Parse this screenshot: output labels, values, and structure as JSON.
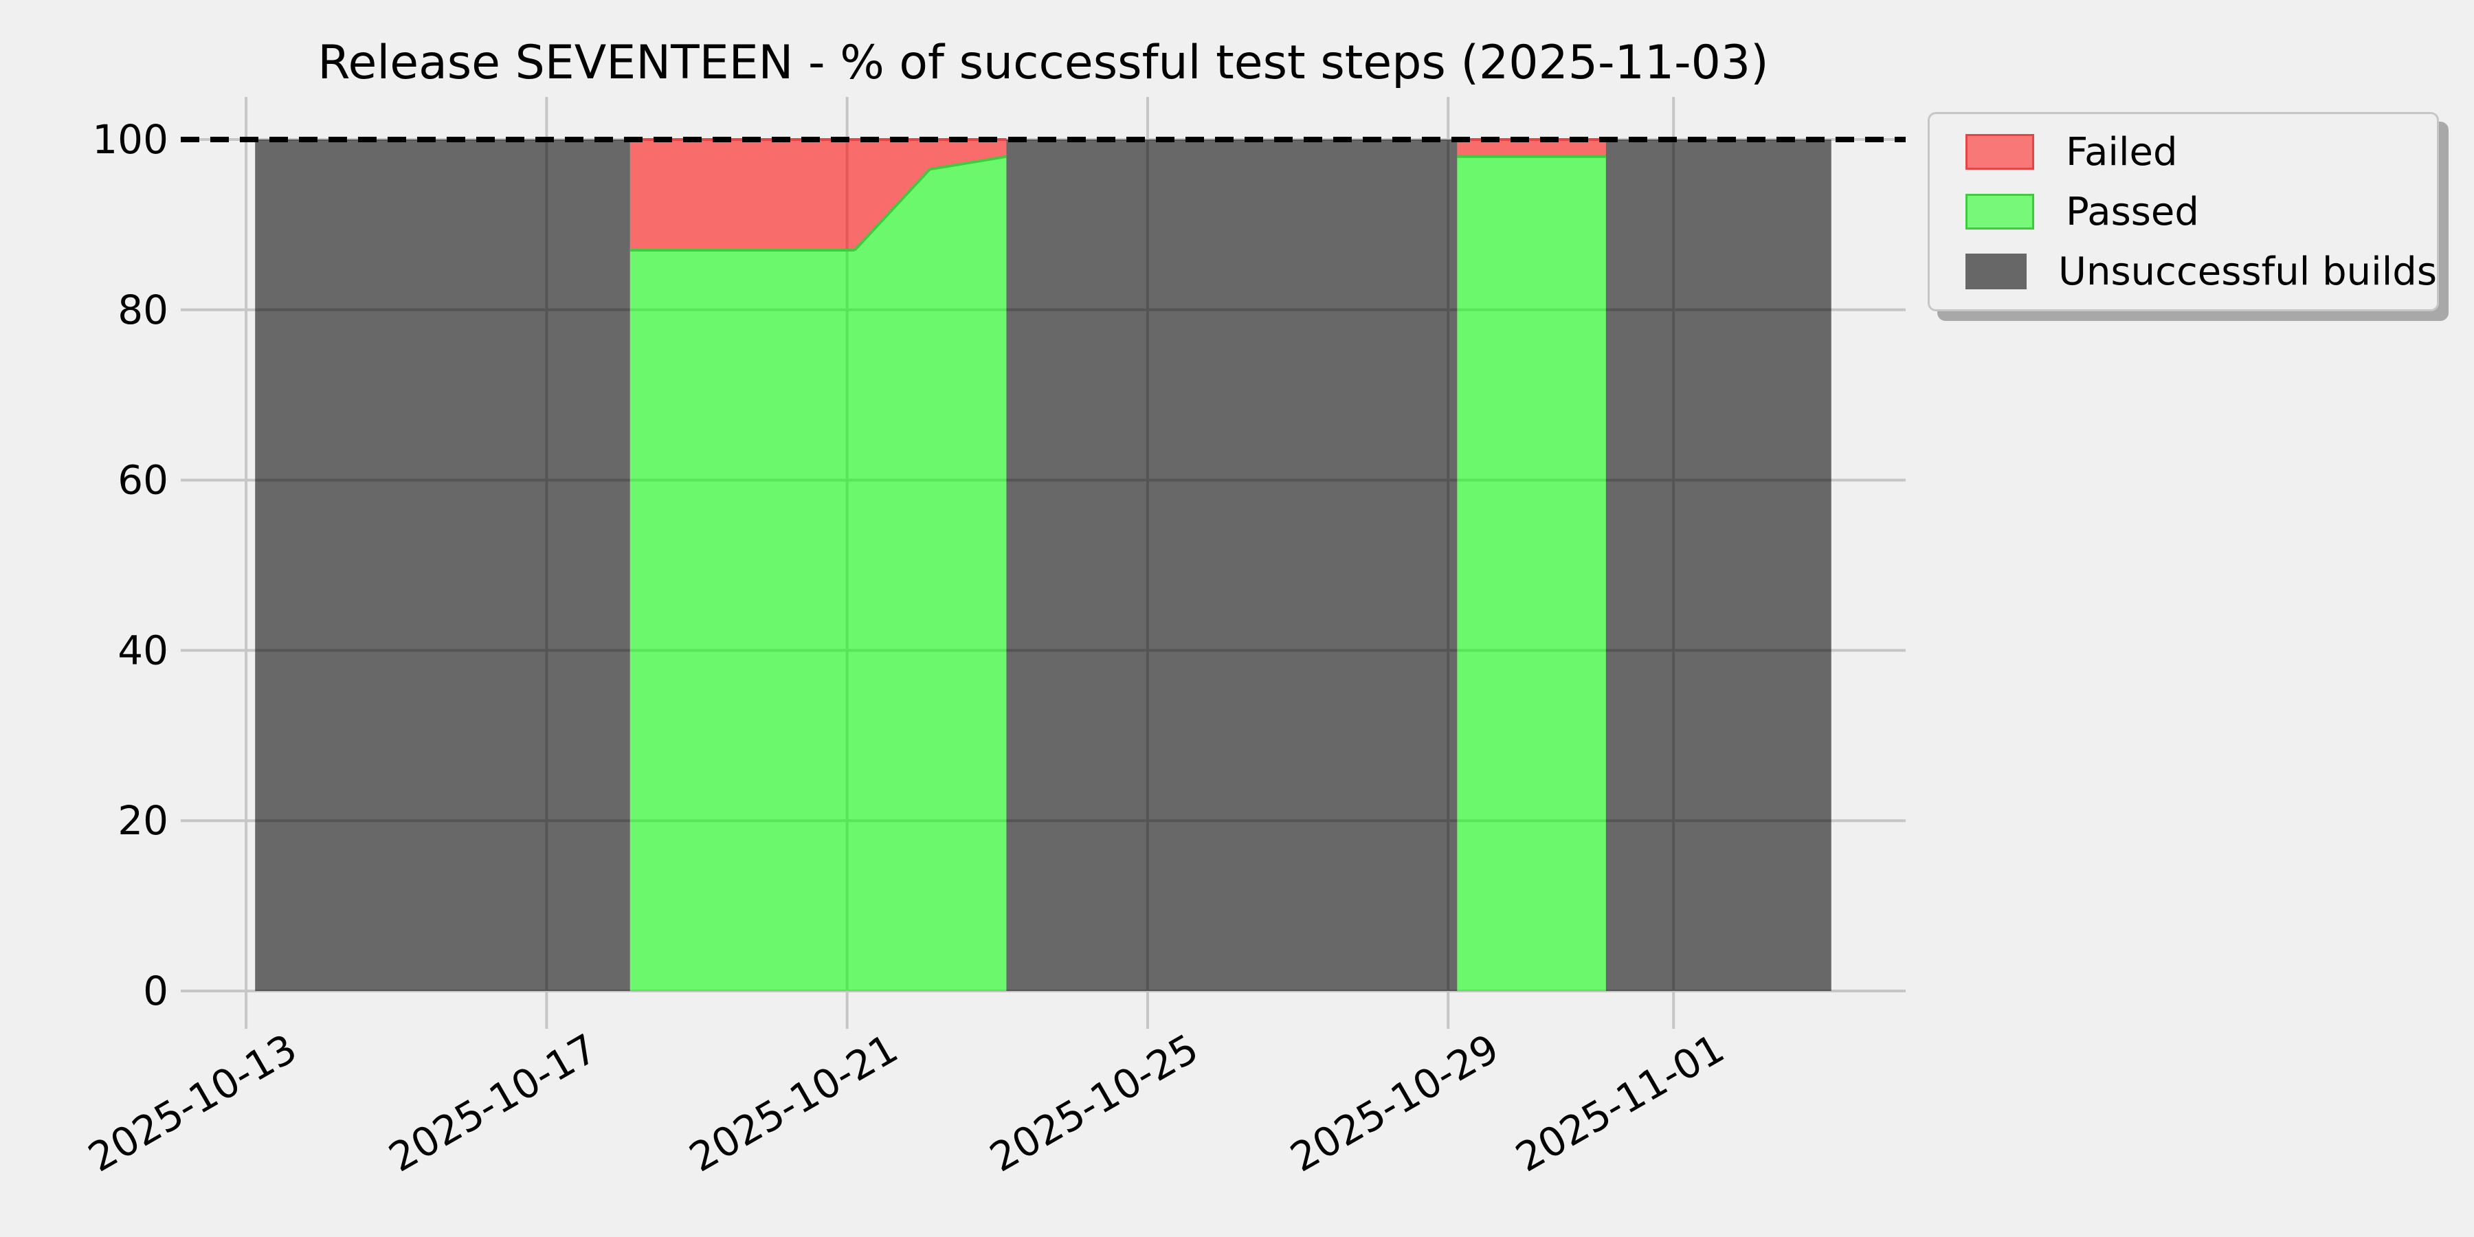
{
  "page_background": "#f0f0f0",
  "grid_color": "#c6c6c6",
  "chart_data": {
    "type": "area",
    "stacked": true,
    "title": "Release SEVENTEEN - % of successful test steps (2025-11-03)",
    "xlabel": "",
    "ylabel": "",
    "x_unit": "days since 2025-10-13 00:00",
    "xlim": [
      -0.87,
      22.09
    ],
    "ylim": [
      0,
      105
    ],
    "grid": true,
    "y_ticks": [
      0,
      20,
      40,
      60,
      80,
      100
    ],
    "x_ticks": [
      {
        "t": 0,
        "label": "2025-10-13"
      },
      {
        "t": 4,
        "label": "2025-10-17"
      },
      {
        "t": 8,
        "label": "2025-10-21"
      },
      {
        "t": 12,
        "label": "2025-10-25"
      },
      {
        "t": 16,
        "label": "2025-10-29"
      },
      {
        "t": 19,
        "label": "2025-11-01"
      }
    ],
    "target_line": {
      "value": 100,
      "style": "dashed",
      "color": "#000000",
      "width": 8,
      "dash": [
        27,
        16
      ]
    },
    "legend_position": "outside-upper-right",
    "stack_order": [
      "passed",
      "failed",
      "unsuccessful"
    ],
    "legend": [
      {
        "key": "failed",
        "label": "Failed",
        "fill": "rgba(255,0,0,0.55)",
        "swatch_fill": "#f87878",
        "edge": "#e64545"
      },
      {
        "key": "passed",
        "label": "Passed",
        "fill": "rgba(0,255,0,0.55)",
        "swatch_fill": "#78f878",
        "edge": "#3ecb3e"
      },
      {
        "key": "unsuccessful",
        "label": "Unsuccessful builds",
        "fill": "rgba(0,0,0,0.57)",
        "swatch_fill": "#676767",
        "edge": "#676767"
      }
    ],
    "series_points": [
      {
        "t": 0.12,
        "passed": 0,
        "failed": 0,
        "unsuccessful": 100
      },
      {
        "t": 5.11,
        "passed": 0,
        "failed": 0,
        "unsuccessful": 100
      },
      {
        "t": 5.11,
        "passed": 87,
        "failed": 13,
        "unsuccessful": 0
      },
      {
        "t": 8.1,
        "passed": 87,
        "failed": 13,
        "unsuccessful": 0
      },
      {
        "t": 9.1,
        "passed": 96.5,
        "failed": 3.5,
        "unsuccessful": 0
      },
      {
        "t": 10.12,
        "passed": 98,
        "failed": 2,
        "unsuccessful": 0
      },
      {
        "t": 10.12,
        "passed": 0,
        "failed": 0,
        "unsuccessful": 100
      },
      {
        "t": 16.12,
        "passed": 0,
        "failed": 0,
        "unsuccessful": 100
      },
      {
        "t": 16.12,
        "passed": 98,
        "failed": 2,
        "unsuccessful": 0
      },
      {
        "t": 18.1,
        "passed": 98,
        "failed": 2,
        "unsuccessful": 0
      },
      {
        "t": 18.1,
        "passed": 0,
        "failed": 0,
        "unsuccessful": 100
      },
      {
        "t": 21.1,
        "passed": 0,
        "failed": 0,
        "unsuccessful": 100
      }
    ]
  }
}
